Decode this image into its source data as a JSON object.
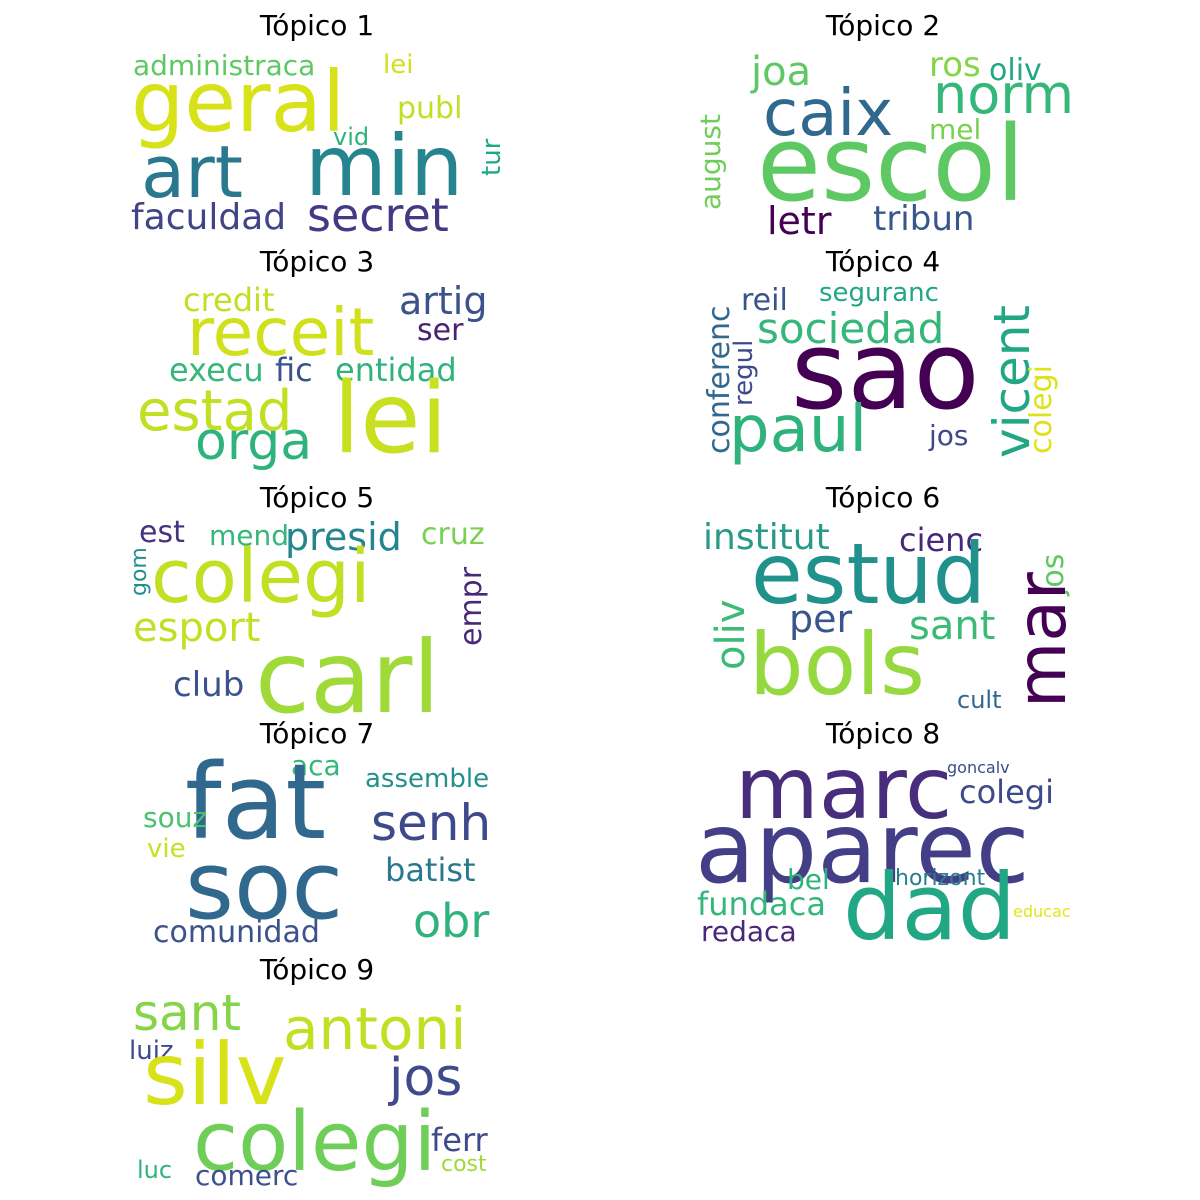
{
  "figure": {
    "topics": [
      {
        "title": "Tópico 1",
        "words": [
          {
            "text": "administraca",
            "color": "#5ec962"
          },
          {
            "text": "lei",
            "color": "#d0e11c"
          },
          {
            "text": "geral",
            "color": "#d8e219"
          },
          {
            "text": "publ",
            "color": "#c2df23"
          },
          {
            "text": "vid",
            "color": "#2eb37c"
          },
          {
            "text": "tur",
            "color": "#22a785"
          },
          {
            "text": "art",
            "color": "#2a788e"
          },
          {
            "text": "min",
            "color": "#25858e"
          },
          {
            "text": "faculdad",
            "color": "#414487"
          },
          {
            "text": "secret",
            "color": "#443a83"
          }
        ]
      },
      {
        "title": "Tópico 2",
        "words": [
          {
            "text": "joa",
            "color": "#5ec962"
          },
          {
            "text": "ros",
            "color": "#86d549"
          },
          {
            "text": "oliv",
            "color": "#22a785"
          },
          {
            "text": "caix",
            "color": "#31688e"
          },
          {
            "text": "norm",
            "color": "#35b779"
          },
          {
            "text": "mel",
            "color": "#7ad151"
          },
          {
            "text": "august",
            "color": "#6ece58"
          },
          {
            "text": "escol",
            "color": "#5ec962"
          },
          {
            "text": "letr",
            "color": "#440154"
          },
          {
            "text": "tribun",
            "color": "#39568c"
          }
        ]
      },
      {
        "title": "Tópico 3",
        "words": [
          {
            "text": "credit",
            "color": "#c2df23"
          },
          {
            "text": "artig",
            "color": "#3b528b"
          },
          {
            "text": "receit",
            "color": "#d0e11c"
          },
          {
            "text": "ser",
            "color": "#482173"
          },
          {
            "text": "execu",
            "color": "#35b779"
          },
          {
            "text": "fic",
            "color": "#3b528b"
          },
          {
            "text": "entidad",
            "color": "#2eb37c"
          },
          {
            "text": "estad",
            "color": "#c2df23"
          },
          {
            "text": "lei",
            "color": "#c8e020"
          },
          {
            "text": "orga",
            "color": "#2eb37c"
          }
        ]
      },
      {
        "title": "Tópico 4",
        "words": [
          {
            "text": "reil",
            "color": "#3b528b"
          },
          {
            "text": "seguranc",
            "color": "#22a785"
          },
          {
            "text": "conferenc",
            "color": "#31688e"
          },
          {
            "text": "regul",
            "color": "#3e4a89"
          },
          {
            "text": "sociedad",
            "color": "#35b779"
          },
          {
            "text": "vicent",
            "color": "#22a785"
          },
          {
            "text": "sao",
            "color": "#440154"
          },
          {
            "text": "colegi",
            "color": "#dde318"
          },
          {
            "text": "paul",
            "color": "#2eb37c"
          },
          {
            "text": "jos",
            "color": "#3e4a89"
          }
        ]
      },
      {
        "title": "Tópico 5",
        "words": [
          {
            "text": "est",
            "color": "#46327e"
          },
          {
            "text": "mend",
            "color": "#35b779"
          },
          {
            "text": "presid",
            "color": "#25858e"
          },
          {
            "text": "cruz",
            "color": "#7ad151"
          },
          {
            "text": "gom",
            "color": "#21918c"
          },
          {
            "text": "colegi",
            "color": "#c2df23"
          },
          {
            "text": "empr",
            "color": "#482878"
          },
          {
            "text": "esport",
            "color": "#c2df23"
          },
          {
            "text": "club",
            "color": "#3b528b"
          },
          {
            "text": "carl",
            "color": "#a0da39"
          }
        ]
      },
      {
        "title": "Tópico 6",
        "words": [
          {
            "text": "institut",
            "color": "#2a9a88"
          },
          {
            "text": "cienc",
            "color": "#482878"
          },
          {
            "text": "jos",
            "color": "#5ec962"
          },
          {
            "text": "oliv",
            "color": "#3bbb75"
          },
          {
            "text": "estud",
            "color": "#21918c"
          },
          {
            "text": "per",
            "color": "#39568c"
          },
          {
            "text": "sant",
            "color": "#3bbb75"
          },
          {
            "text": "mar",
            "color": "#440154"
          },
          {
            "text": "bols",
            "color": "#95d840"
          },
          {
            "text": "cult",
            "color": "#31688e"
          }
        ]
      },
      {
        "title": "Tópico 7",
        "words": [
          {
            "text": "aca",
            "color": "#35b779"
          },
          {
            "text": "assemble",
            "color": "#21918c"
          },
          {
            "text": "fat",
            "color": "#31688e"
          },
          {
            "text": "souz",
            "color": "#4ac16d"
          },
          {
            "text": "senh",
            "color": "#3e4a89"
          },
          {
            "text": "vie",
            "color": "#c8e020"
          },
          {
            "text": "batist",
            "color": "#2a788e"
          },
          {
            "text": "soc",
            "color": "#31688e"
          },
          {
            "text": "obr",
            "color": "#2eb37c"
          },
          {
            "text": "comunidad",
            "color": "#3b528b"
          }
        ]
      },
      {
        "title": "Tópico 8",
        "words": [
          {
            "text": "marc",
            "color": "#472d7b"
          },
          {
            "text": "goncalv",
            "color": "#3e4a89"
          },
          {
            "text": "colegi",
            "color": "#3e4a89"
          },
          {
            "text": "aparec",
            "color": "#433e85"
          },
          {
            "text": "bel",
            "color": "#2eb37c"
          },
          {
            "text": "horizont",
            "color": "#277f8e"
          },
          {
            "text": "fundaca",
            "color": "#35b779"
          },
          {
            "text": "dad",
            "color": "#22a785"
          },
          {
            "text": "educac",
            "color": "#e5e419"
          },
          {
            "text": "redaca",
            "color": "#482878"
          }
        ]
      },
      {
        "title": "Tópico 9",
        "words": [
          {
            "text": "sant",
            "color": "#86d549"
          },
          {
            "text": "antoni",
            "color": "#c2df23"
          },
          {
            "text": "luiz",
            "color": "#3e4a89"
          },
          {
            "text": "silv",
            "color": "#d8e219"
          },
          {
            "text": "jos",
            "color": "#3e4a89"
          },
          {
            "text": "colegi",
            "color": "#6ece58"
          },
          {
            "text": "ferr",
            "color": "#3e4a89"
          },
          {
            "text": "luc",
            "color": "#2eb37c"
          },
          {
            "text": "comerc",
            "color": "#3b528b"
          },
          {
            "text": "cost",
            "color": "#a0da39"
          }
        ]
      }
    ]
  }
}
